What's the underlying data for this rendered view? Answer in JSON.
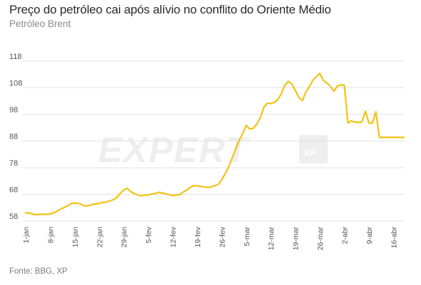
{
  "header": {
    "title": "Preço do petróleo cai após alívio no conflito do Oriente Médio",
    "subtitle": "Petróleo Brent"
  },
  "footer": {
    "source": "Fonte: BBG, XP"
  },
  "watermark": {
    "text": "EXPERT",
    "badge": "XP"
  },
  "colors": {
    "line": "#f2c314",
    "grid": "#e3e3e3",
    "axis_text": "#555555",
    "watermark": "#eeeeee"
  },
  "chart_data": {
    "type": "line",
    "title": "Preço do petróleo cai após alívio no conflito do Oriente Médio",
    "subtitle": "Petróleo Brent",
    "ylim": [
      58,
      118
    ],
    "y_ticks": [
      58,
      68,
      78,
      88,
      98,
      108,
      118
    ],
    "x_tick_labels": [
      "1-jan",
      "8-jan",
      "15-jan",
      "22-jan",
      "29-jan",
      "5-fev",
      "12-fev",
      "19-fev",
      "26-fev",
      "5-mar",
      "12-mar",
      "19-mar",
      "26-mar",
      "2-abr",
      "9-abr",
      "16-abr"
    ],
    "x_range_days": [
      0,
      108
    ],
    "grid": "horizontal",
    "series": [
      {
        "x": [
          0,
          1,
          2,
          3,
          4,
          5,
          6,
          7,
          8,
          9,
          10,
          11,
          12,
          13,
          14,
          15,
          16,
          17,
          18,
          19,
          20,
          21,
          22,
          23,
          24,
          25,
          26,
          27,
          28,
          29,
          30,
          31,
          32,
          33,
          34,
          35,
          36,
          37,
          38,
          39,
          40,
          41,
          42,
          43,
          44,
          45,
          46,
          47,
          48,
          49,
          50,
          51,
          52,
          53,
          54,
          55,
          56,
          57,
          58,
          59,
          60,
          61,
          62,
          63,
          64,
          65,
          66,
          67,
          68,
          69,
          70,
          71,
          72,
          73,
          74,
          75,
          76,
          77,
          78,
          79,
          80,
          81,
          82,
          83,
          84,
          85,
          86,
          87,
          88,
          89,
          90,
          91,
          92,
          93,
          94,
          95,
          96,
          97,
          98,
          99,
          100,
          101,
          102,
          103,
          104,
          105,
          106,
          107,
          108
        ],
        "y": [
          61.1,
          61,
          60.6,
          60.4,
          60.5,
          60.6,
          60.5,
          60.7,
          61,
          61.7,
          62.5,
          63.1,
          63.7,
          64.6,
          64.7,
          64.7,
          64.2,
          63.6,
          63.8,
          64.2,
          64.4,
          64.6,
          65,
          65.1,
          65.5,
          66,
          66.8,
          68.4,
          69.6,
          70.3,
          69,
          68.3,
          67.8,
          67.4,
          67.8,
          67.7,
          68.2,
          68.3,
          68.8,
          68.5,
          68.2,
          67.9,
          67.5,
          67.8,
          67.9,
          68.9,
          69.6,
          70.6,
          71.3,
          71.2,
          71,
          70.8,
          70.6,
          70.8,
          71.3,
          71.7,
          73.6,
          75.8,
          78.4,
          81.8,
          85.1,
          88.3,
          90.9,
          93.9,
          92.5,
          92.8,
          94.4,
          96.7,
          100.6,
          102.2,
          102.1,
          102.5,
          103.6,
          105.8,
          108.9,
          110.4,
          109.4,
          107,
          104.4,
          103.2,
          106.4,
          108.4,
          110.8,
          112.2,
          113.4,
          110.8,
          109.8,
          108.6,
          106.7,
          108.6,
          109.1,
          108.9,
          94.8,
          95.6,
          95.1,
          95,
          95.2,
          99.2,
          94.8,
          94.7,
          99,
          89.4,
          89.4,
          89.4,
          89.4,
          89.4,
          89.4,
          89.4,
          89.4
        ]
      }
    ]
  }
}
